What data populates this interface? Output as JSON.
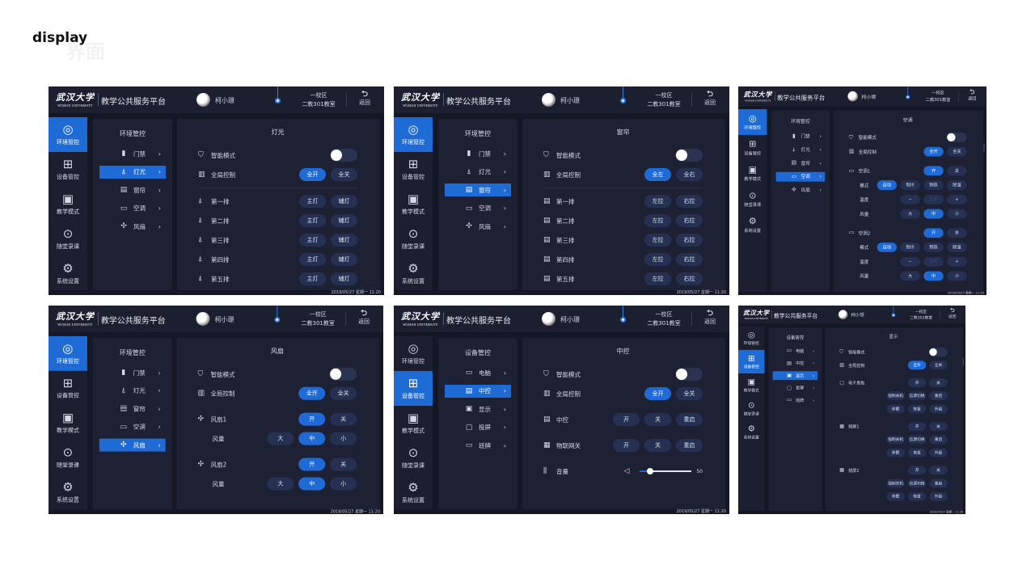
{
  "page_title": "display",
  "page_subtitle": "界面",
  "colors": {
    "accent": "#1f6bd6",
    "background": "#141726",
    "panel": "#1e2134",
    "button": "#253052"
  },
  "common": {
    "logo_cn": "武汉大学",
    "logo_en": "WUHAN UNIVERSITY",
    "platform": "教学公共服务平台",
    "user": "柯小璟",
    "campus": "一校区",
    "room": "二教301教室",
    "back": "返回",
    "datetime": "2019/05/27 星期一 11:20",
    "nav": [
      {
        "label": "环境管控",
        "icon": "leaf-icon"
      },
      {
        "label": "设备管控",
        "icon": "grid-icon"
      },
      {
        "label": "教学模式",
        "icon": "teaching-screen-icon"
      },
      {
        "label": "随堂录课",
        "icon": "camera-icon"
      },
      {
        "label": "系统设置",
        "icon": "gear-icon"
      }
    ]
  },
  "screens": [
    {
      "active_nav": 0,
      "sub_title": "环境管控",
      "active_sub": 1,
      "content_title": "灯光",
      "scrollbar": false,
      "sub_items": [
        {
          "label": "门禁",
          "icon": "door-icon"
        },
        {
          "label": "灯光",
          "icon": "lamp-icon"
        },
        {
          "label": "窗帘",
          "icon": "curtain-icon"
        },
        {
          "label": "空调",
          "icon": "ac-icon"
        },
        {
          "label": "风扇",
          "icon": "fan-icon"
        }
      ],
      "rows": [
        {
          "type": "toggle",
          "icon": "smart-mode-icon",
          "label": "智能模式",
          "on": false
        },
        {
          "type": "buttons",
          "icon": "global-control-icon",
          "label": "全局控制",
          "buttons": [
            {
              "label": "全开",
              "active": true
            },
            {
              "label": "全关"
            }
          ]
        },
        {
          "type": "divider"
        },
        {
          "type": "buttons",
          "icon": "lamp-icon",
          "label": "第一排",
          "buttons": [
            {
              "label": "主灯"
            },
            {
              "label": "辅灯"
            }
          ]
        },
        {
          "type": "buttons",
          "icon": "lamp-icon",
          "label": "第二排",
          "buttons": [
            {
              "label": "主灯"
            },
            {
              "label": "辅灯"
            }
          ]
        },
        {
          "type": "buttons",
          "icon": "lamp-icon",
          "label": "第三排",
          "buttons": [
            {
              "label": "主灯"
            },
            {
              "label": "辅灯"
            }
          ]
        },
        {
          "type": "buttons",
          "icon": "lamp-icon",
          "label": "第四排",
          "buttons": [
            {
              "label": "主灯"
            },
            {
              "label": "辅灯"
            }
          ]
        },
        {
          "type": "buttons",
          "icon": "lamp-icon",
          "label": "第五排",
          "buttons": [
            {
              "label": "主灯"
            },
            {
              "label": "辅灯"
            }
          ]
        }
      ]
    },
    {
      "active_nav": 0,
      "sub_title": "环境管控",
      "active_sub": 2,
      "content_title": "窗帘",
      "scrollbar": false,
      "sub_items": [
        {
          "label": "门禁",
          "icon": "door-icon"
        },
        {
          "label": "灯光",
          "icon": "lamp-icon"
        },
        {
          "label": "窗帘",
          "icon": "curtain-icon"
        },
        {
          "label": "空调",
          "icon": "ac-icon"
        },
        {
          "label": "风扇",
          "icon": "fan-icon"
        }
      ],
      "rows": [
        {
          "type": "toggle",
          "icon": "smart-mode-icon",
          "label": "智能模式",
          "on": false
        },
        {
          "type": "buttons",
          "icon": "global-control-icon",
          "label": "全局控制",
          "buttons": [
            {
              "label": "全左",
              "active": true
            },
            {
              "label": "全右"
            }
          ]
        },
        {
          "type": "divider"
        },
        {
          "type": "buttons",
          "icon": "curtain-icon",
          "label": "第一排",
          "buttons": [
            {
              "label": "左拉"
            },
            {
              "label": "右拉"
            }
          ]
        },
        {
          "type": "buttons",
          "icon": "curtain-icon",
          "label": "第二排",
          "buttons": [
            {
              "label": "左拉"
            },
            {
              "label": "右拉"
            }
          ]
        },
        {
          "type": "buttons",
          "icon": "curtain-icon",
          "label": "第三排",
          "buttons": [
            {
              "label": "左拉"
            },
            {
              "label": "右拉"
            }
          ]
        },
        {
          "type": "buttons",
          "icon": "curtain-icon",
          "label": "第四排",
          "buttons": [
            {
              "label": "左拉"
            },
            {
              "label": "右拉"
            }
          ]
        },
        {
          "type": "buttons",
          "icon": "curtain-icon",
          "label": "第五排",
          "buttons": [
            {
              "label": "左拉"
            },
            {
              "label": "右拉"
            }
          ]
        }
      ]
    },
    {
      "active_nav": 0,
      "sub_title": "环境管控",
      "active_sub": 3,
      "content_title": "空调",
      "scrollbar": true,
      "sub_items": [
        {
          "label": "门禁",
          "icon": "door-icon"
        },
        {
          "label": "灯光",
          "icon": "lamp-icon"
        },
        {
          "label": "窗帘",
          "icon": "curtain-icon"
        },
        {
          "label": "空调",
          "icon": "ac-icon"
        },
        {
          "label": "风扇",
          "icon": "fan-icon"
        }
      ],
      "rows": [
        {
          "type": "toggle",
          "icon": "smart-mode-icon",
          "label": "智能模式",
          "on": false
        },
        {
          "type": "buttons",
          "icon": "global-control-icon",
          "label": "全局控制",
          "buttons": [
            {
              "label": "全开",
              "active": true
            },
            {
              "label": "全关"
            }
          ]
        },
        {
          "type": "buttons",
          "icon": "ac-icon",
          "label": "空调1",
          "gap": true,
          "buttons": [
            {
              "label": "开",
              "active": true
            },
            {
              "label": "关"
            }
          ]
        },
        {
          "type": "buttons",
          "indent": true,
          "label": "模式",
          "buttons": [
            {
              "label": "自动",
              "active": true
            },
            {
              "label": "制冷"
            },
            {
              "label": "制热"
            },
            {
              "label": "除湿"
            }
          ]
        },
        {
          "type": "buttons",
          "indent": true,
          "label": "温度",
          "buttons": [
            {
              "label": "−"
            },
            {
              "label": "27C",
              "dim": true
            },
            {
              "label": "+"
            }
          ]
        },
        {
          "type": "buttons",
          "indent": true,
          "label": "风量",
          "buttons": [
            {
              "label": "大"
            },
            {
              "label": "中",
              "active": true
            },
            {
              "label": "小"
            }
          ]
        },
        {
          "type": "buttons",
          "icon": "ac-icon",
          "label": "空调2",
          "gap": true,
          "buttons": [
            {
              "label": "开",
              "active": true
            },
            {
              "label": "关"
            }
          ]
        },
        {
          "type": "buttons",
          "indent": true,
          "label": "模式",
          "buttons": [
            {
              "label": "自动",
              "active": true
            },
            {
              "label": "制冷"
            },
            {
              "label": "制热"
            },
            {
              "label": "除湿"
            }
          ]
        },
        {
          "type": "buttons",
          "indent": true,
          "label": "温度",
          "buttons": [
            {
              "label": "−"
            },
            {
              "label": "27C",
              "dim": true
            },
            {
              "label": "+"
            }
          ]
        },
        {
          "type": "buttons",
          "indent": true,
          "label": "风量",
          "buttons": [
            {
              "label": "大"
            },
            {
              "label": "中",
              "active": true
            },
            {
              "label": "小"
            }
          ]
        }
      ]
    },
    {
      "active_nav": 0,
      "sub_title": "环境管控",
      "active_sub": 4,
      "content_title": "风扇",
      "scrollbar": false,
      "sub_items": [
        {
          "label": "门禁",
          "icon": "door-icon"
        },
        {
          "label": "灯光",
          "icon": "lamp-icon"
        },
        {
          "label": "窗帘",
          "icon": "curtain-icon"
        },
        {
          "label": "空调",
          "icon": "ac-icon"
        },
        {
          "label": "风扇",
          "icon": "fan-icon"
        }
      ],
      "rows": [
        {
          "type": "toggle",
          "icon": "smart-mode-icon",
          "label": "智能模式",
          "on": false
        },
        {
          "type": "buttons",
          "icon": "global-control-icon",
          "label": "全局控制",
          "buttons": [
            {
              "label": "全开",
              "active": true
            },
            {
              "label": "全关"
            }
          ]
        },
        {
          "type": "buttons",
          "icon": "fan-icon",
          "label": "风扇1",
          "gap": true,
          "buttons": [
            {
              "label": "开",
              "active": true
            },
            {
              "label": "关"
            }
          ]
        },
        {
          "type": "buttons",
          "indent": true,
          "label": "风量",
          "buttons": [
            {
              "label": "大"
            },
            {
              "label": "中",
              "active": true
            },
            {
              "label": "小"
            }
          ]
        },
        {
          "type": "buttons",
          "icon": "fan-icon",
          "label": "风扇2",
          "gap": true,
          "buttons": [
            {
              "label": "开",
              "active": true
            },
            {
              "label": "关"
            }
          ]
        },
        {
          "type": "buttons",
          "indent": true,
          "label": "风量",
          "buttons": [
            {
              "label": "大"
            },
            {
              "label": "中",
              "active": true
            },
            {
              "label": "小"
            }
          ]
        }
      ]
    },
    {
      "active_nav": 1,
      "sub_title": "设备管控",
      "active_sub": 1,
      "content_title": "中控",
      "scrollbar": false,
      "sub_items": [
        {
          "label": "电脑",
          "icon": "computer-icon"
        },
        {
          "label": "中控",
          "icon": "control-unit-icon"
        },
        {
          "label": "显示",
          "icon": "display-icon"
        },
        {
          "label": "投屏",
          "icon": "cast-screen-icon"
        },
        {
          "label": "班牌",
          "icon": "class-board-icon"
        }
      ],
      "rows": [
        {
          "type": "toggle",
          "icon": "smart-mode-icon",
          "label": "智能模式",
          "on": false
        },
        {
          "type": "buttons",
          "icon": "global-control-icon",
          "label": "全局控制",
          "buttons": [
            {
              "label": "全开",
              "active": true
            },
            {
              "label": "全关"
            }
          ]
        },
        {
          "type": "buttons",
          "icon": "control-unit-icon",
          "label": "中控",
          "gap": true,
          "buttons": [
            {
              "label": "开"
            },
            {
              "label": "关"
            },
            {
              "label": "重启"
            }
          ]
        },
        {
          "type": "buttons",
          "icon": "gateway-icon",
          "label": "物联网关",
          "gap": true,
          "buttons": [
            {
              "label": "开"
            },
            {
              "label": "关"
            },
            {
              "label": "重启"
            }
          ]
        },
        {
          "type": "slider",
          "icon": "equalizer-icon",
          "label": "音量",
          "value": 50,
          "gap": true
        }
      ]
    },
    {
      "active_nav": 1,
      "sub_title": "设备管控",
      "active_sub": 2,
      "content_title": "显示",
      "scrollbar": true,
      "sub_items": [
        {
          "label": "电脑",
          "icon": "computer-icon"
        },
        {
          "label": "中控",
          "icon": "control-unit-icon"
        },
        {
          "label": "显示",
          "icon": "display-icon"
        },
        {
          "label": "投屏",
          "icon": "cast-screen-icon"
        },
        {
          "label": "班牌",
          "icon": "class-board-icon"
        }
      ],
      "rows": [
        {
          "type": "toggle",
          "icon": "smart-mode-icon",
          "label": "智能模式",
          "on": false
        },
        {
          "type": "buttons",
          "icon": "global-control-icon",
          "label": "全局控制",
          "buttons": [
            {
              "label": "全开",
              "active": true
            },
            {
              "label": "全关"
            }
          ]
        },
        {
          "type": "buttons",
          "icon": "blackboard-icon",
          "label": "电子黑板",
          "gap": true,
          "buttons": [
            {
              "label": "开"
            },
            {
              "label": "关"
            }
          ]
        },
        {
          "type": "buttons",
          "buttons": [
            {
              "label": "强制关机"
            },
            {
              "label": "信源切换"
            },
            {
              "label": "重启"
            }
          ]
        },
        {
          "type": "buttons",
          "buttons": [
            {
              "label": "休眠"
            },
            {
              "label": "恢复"
            },
            {
              "label": "升级"
            }
          ]
        },
        {
          "type": "buttons",
          "icon": "side-screen-icon",
          "label": "侧屏1",
          "gap": true,
          "buttons": [
            {
              "label": "开"
            },
            {
              "label": "关"
            }
          ]
        },
        {
          "type": "buttons",
          "buttons": [
            {
              "label": "强制关机"
            },
            {
              "label": "信源切换"
            },
            {
              "label": "重启"
            }
          ]
        },
        {
          "type": "buttons",
          "buttons": [
            {
              "label": "休眠"
            },
            {
              "label": "恢复"
            },
            {
              "label": "升级"
            }
          ]
        },
        {
          "type": "buttons",
          "icon": "side-screen-icon",
          "label": "侧屏2",
          "gap": true,
          "buttons": [
            {
              "label": "开"
            },
            {
              "label": "关"
            }
          ]
        },
        {
          "type": "buttons",
          "buttons": [
            {
              "label": "强制关机"
            },
            {
              "label": "信源切换"
            },
            {
              "label": "重启"
            }
          ]
        },
        {
          "type": "buttons",
          "buttons": [
            {
              "label": "休眠"
            },
            {
              "label": "恢复"
            },
            {
              "label": "升级"
            }
          ]
        }
      ]
    }
  ]
}
